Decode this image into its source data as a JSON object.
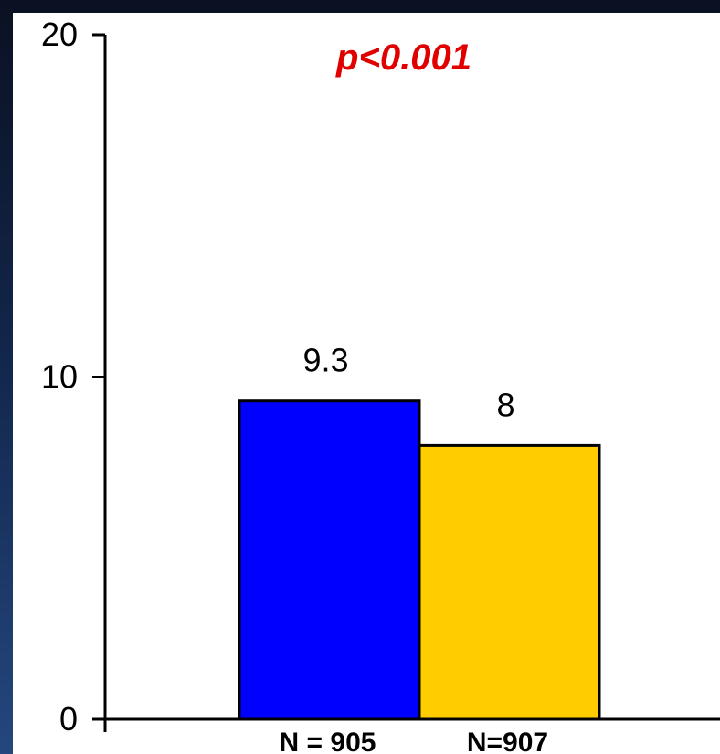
{
  "chart_data": {
    "type": "bar",
    "categories": [
      "N = 905",
      "N=907"
    ],
    "values": [
      9.3,
      8
    ],
    "data_labels": [
      "9.3",
      "8"
    ],
    "colors": [
      "#0000ff",
      "#ffcc00"
    ],
    "y_ticks": [
      {
        "value": 0,
        "label": "0"
      },
      {
        "value": 10,
        "label": "10"
      },
      {
        "value": 20,
        "label": "20"
      }
    ],
    "ylim": [
      0,
      20
    ],
    "annotation": "p<0.001",
    "annotation_color": "#e00000",
    "title": "",
    "xlabel": "",
    "ylabel": "",
    "grid": false,
    "legend": "none"
  }
}
